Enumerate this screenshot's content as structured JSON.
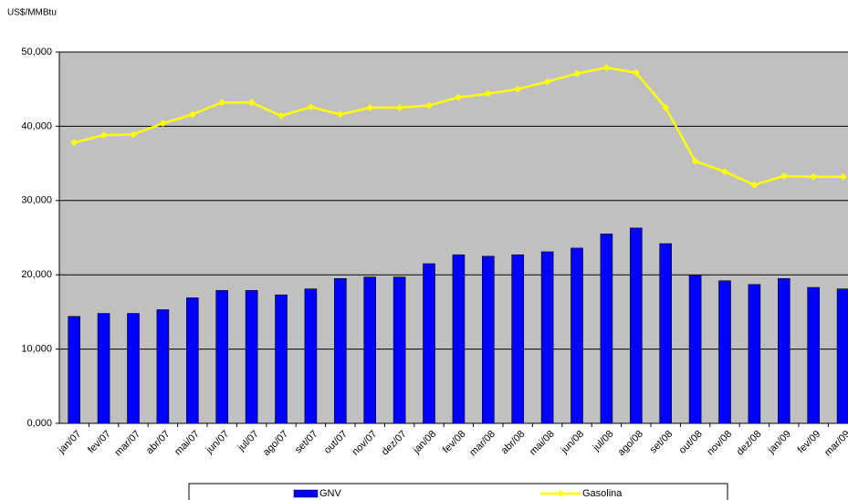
{
  "chart_data": {
    "type": "bar",
    "y_label": "US$/MMBtu",
    "categories": [
      "jan/07",
      "fev/07",
      "mar/07",
      "abr/07",
      "mai/07",
      "jun/07",
      "jul/07",
      "ago/07",
      "set/07",
      "out/07",
      "nov/07",
      "dez/07",
      "jan/08",
      "fev/08",
      "mar/08",
      "abr/08",
      "mai/08",
      "jun/08",
      "jul/08",
      "ago/08",
      "set/08",
      "out/08",
      "nov/08",
      "dez/08",
      "jan/09",
      "fev/09",
      "mar/09"
    ],
    "series": [
      {
        "name": "GNV",
        "type": "bar",
        "color": "#0000ff",
        "values": [
          14.4,
          14.8,
          14.8,
          15.3,
          16.9,
          17.9,
          17.9,
          17.3,
          18.1,
          19.5,
          19.7,
          19.7,
          21.5,
          22.7,
          22.5,
          22.7,
          23.1,
          23.6,
          25.5,
          26.3,
          24.2,
          19.9,
          19.2,
          18.7,
          19.5,
          18.3,
          18.1
        ]
      },
      {
        "name": "Gasolina",
        "type": "line",
        "color": "#ffff00",
        "values": [
          37.8,
          38.8,
          38.9,
          40.4,
          41.6,
          43.2,
          43.2,
          41.4,
          42.6,
          41.6,
          42.5,
          42.5,
          42.8,
          43.9,
          44.4,
          45.0,
          46.0,
          47.1,
          47.9,
          47.2,
          42.5,
          35.3,
          33.9,
          32.1,
          33.3,
          33.2,
          33.2
        ]
      }
    ],
    "ylim": [
      0,
      50
    ],
    "yticks": [
      {
        "value": 0,
        "label": "0,000"
      },
      {
        "value": 10,
        "label": "10,000"
      },
      {
        "value": 20,
        "label": "20,000"
      },
      {
        "value": 30,
        "label": "30,000"
      },
      {
        "value": 40,
        "label": "40,000"
      },
      {
        "value": 50,
        "label": "50,000"
      }
    ],
    "grid": true,
    "legend": "bottom"
  }
}
